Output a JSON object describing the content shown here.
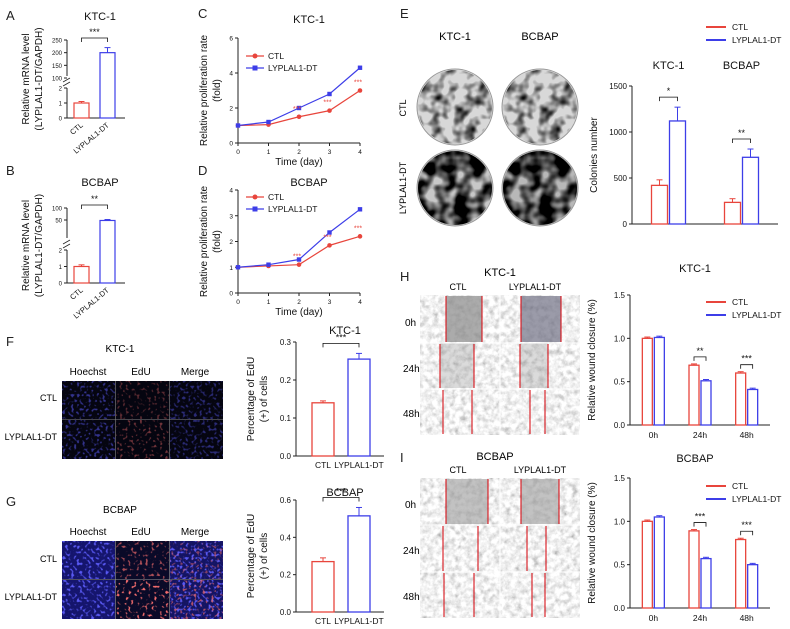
{
  "colors": {
    "ctl": "#e8453c",
    "lyp": "#3d3ee8",
    "axis": "#222222",
    "micro_dark": "#1a1a3a"
  },
  "panel_letters": {
    "a": "A",
    "b": "B",
    "c": "C",
    "d": "D",
    "e": "E",
    "f": "F",
    "g": "G",
    "h": "H",
    "i": "I"
  },
  "common": {
    "ctl": "CTL",
    "lyp": "LYPLAL1-DT",
    "ktc": "KTC-1",
    "bcbap": "BCBAP",
    "time_label": "Time (day)",
    "fold": "(fold)",
    "prolif": "Relative proliferation rate"
  },
  "chart_data": [
    {
      "id": "A",
      "type": "bar",
      "title": "KTC-1",
      "ylabel": [
        "Relative mRNA level",
        "(LYPLAL1-DT/GAPDH)"
      ],
      "categories": [
        "CTL",
        "LYPLAL1-DT"
      ],
      "values": [
        1,
        200
      ],
      "errors": [
        0.1,
        20
      ],
      "ticks_low": [
        "0",
        "1",
        "2"
      ],
      "ticks_high": [
        "100",
        "150",
        "200",
        "250"
      ],
      "sig": "***"
    },
    {
      "id": "B",
      "type": "bar",
      "title": "BCBAP",
      "ylabel": [
        "Relative mRNA level",
        "(LYPLAL1-DT/GAPDH)"
      ],
      "categories": [
        "CTL",
        "LYPLAL1-DT"
      ],
      "values": [
        1,
        48
      ],
      "errors": [
        0.1,
        4
      ],
      "ticks_low": [
        "0",
        "1",
        "2"
      ],
      "ticks_high": [
        "50",
        "100"
      ],
      "sig": "**"
    },
    {
      "id": "C",
      "type": "line",
      "title": "KTC-1",
      "xlabel": "Time (day)",
      "ylabel": [
        "Relative proliferation rate",
        "(fold)"
      ],
      "x": [
        0,
        1,
        2,
        3,
        4
      ],
      "ylim": [
        0,
        6
      ],
      "yticks": [
        0,
        2,
        4,
        6
      ],
      "series": [
        {
          "name": "CTL",
          "values": [
            1.0,
            1.05,
            1.5,
            1.85,
            3.0
          ]
        },
        {
          "name": "LYPLAL1-DT",
          "values": [
            1.0,
            1.2,
            2.0,
            2.8,
            4.3
          ]
        }
      ],
      "sig": [
        "***",
        "***",
        "***"
      ]
    },
    {
      "id": "D",
      "type": "line",
      "title": "BCBAP",
      "xlabel": "Time (day)",
      "ylabel": [
        "Relative proliferation rate",
        "(fold)"
      ],
      "x": [
        0,
        1,
        2,
        3,
        4
      ],
      "ylim": [
        0,
        4
      ],
      "yticks": [
        0,
        1,
        2,
        3,
        4
      ],
      "series": [
        {
          "name": "CTL",
          "values": [
            1.0,
            1.05,
            1.1,
            1.85,
            2.2
          ]
        },
        {
          "name": "LYPLAL1-DT",
          "values": [
            1.0,
            1.1,
            1.3,
            2.35,
            3.25
          ]
        }
      ],
      "sig": [
        "***",
        "***",
        "***"
      ]
    },
    {
      "id": "E",
      "type": "bar",
      "ylabel": "Colonies number",
      "groups": [
        "KTC-1",
        "BCBAP"
      ],
      "series": [
        {
          "name": "CTL",
          "values": [
            420,
            235
          ]
        },
        {
          "name": "LYPLAL1-DT",
          "values": [
            1120,
            725
          ]
        }
      ],
      "errors": [
        [
          60,
          40
        ],
        [
          150,
          90
        ]
      ],
      "ylim": [
        0,
        1500
      ],
      "yticks": [
        0,
        500,
        1000,
        1500
      ],
      "sig": [
        "*",
        "**"
      ]
    },
    {
      "id": "F",
      "type": "bar",
      "title": "KTC-1",
      "ylabel": [
        "Percentage of EdU",
        "(+) of cells"
      ],
      "categories": [
        "CTL",
        "LYPLAL1-DT"
      ],
      "values": [
        0.14,
        0.255
      ],
      "errors": [
        0.005,
        0.015
      ],
      "ylim": [
        0,
        0.3
      ],
      "yticks": [
        "0.0",
        "0.1",
        "0.2",
        "0.3"
      ],
      "sig": "***"
    },
    {
      "id": "G",
      "type": "bar",
      "title": "BCBAP",
      "ylabel": [
        "Percentage of EdU",
        "(+) of cells"
      ],
      "categories": [
        "CTL",
        "LYPLAL1-DT"
      ],
      "values": [
        0.27,
        0.515
      ],
      "errors": [
        0.02,
        0.045
      ],
      "ylim": [
        0,
        0.6
      ],
      "yticks": [
        "0.0",
        "0.2",
        "0.4",
        "0.6"
      ],
      "sig": "***"
    },
    {
      "id": "H",
      "type": "bar",
      "title": "KTC-1",
      "ylabel": "Relative wound closure (%)",
      "groups": [
        "0h",
        "24h",
        "48h"
      ],
      "series": [
        {
          "name": "CTL",
          "values": [
            1.0,
            0.69,
            0.6
          ]
        },
        {
          "name": "LYPLAL1-DT",
          "values": [
            1.01,
            0.51,
            0.41
          ]
        }
      ],
      "ylim": [
        0,
        1.5
      ],
      "yticks": [
        "0.0",
        "0.5",
        "1.0",
        "1.5"
      ],
      "sig": [
        "**",
        "***"
      ]
    },
    {
      "id": "I",
      "type": "bar",
      "title": "BCBAP",
      "ylabel": "Relative wound closure (%)",
      "groups": [
        "0h",
        "24h",
        "48h"
      ],
      "series": [
        {
          "name": "CTL",
          "values": [
            1.0,
            0.89,
            0.79
          ]
        },
        {
          "name": "LYPLAL1-DT",
          "values": [
            1.05,
            0.57,
            0.5
          ]
        }
      ],
      "ylim": [
        0,
        1.5
      ],
      "yticks": [
        "0.0",
        "0.5",
        "1.0",
        "1.5"
      ],
      "sig": [
        "***",
        "***"
      ]
    }
  ],
  "images": {
    "e_cols": [
      "KTC-1",
      "BCBAP"
    ],
    "e_rows": [
      "CTL",
      "LYPLAL1-DT"
    ],
    "f_title": "KTC-1",
    "g_title": "BCBAP",
    "micro_cols": [
      "Hoechst",
      "EdU",
      "Merge"
    ],
    "micro_rows": [
      "CTL",
      "LYPLAL1-DT"
    ],
    "h_title": "KTC-1",
    "i_title": "BCBAP",
    "wound_cols": [
      "CTL",
      "LYPLAL1-DT"
    ],
    "wound_rows": [
      "0h",
      "24h",
      "48h"
    ]
  }
}
